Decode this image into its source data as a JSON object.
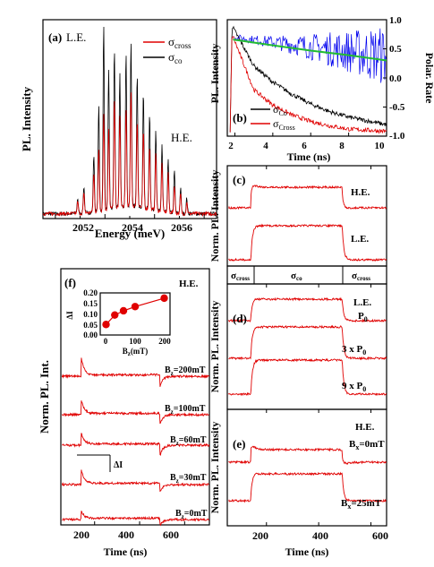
{
  "panels": {
    "a": {
      "label": "(a)",
      "annot_le": "L.E.",
      "annot_he": "H.E.",
      "ylabel": "PL. Intensity",
      "xlabel": "Energy (meV)",
      "xticks": [
        "2052",
        "2054",
        "2056"
      ],
      "legend": [
        {
          "sym": "σ",
          "sub": "cross",
          "color": "#e00000"
        },
        {
          "sym": "σ",
          "sub": "co",
          "color": "#000000"
        }
      ]
    },
    "b": {
      "label": "(b)",
      "ylabel_left": "PL. Intensity",
      "ylabel_right": "Polar. Rate",
      "xlabel": "Time (ns)",
      "xticks": [
        "2",
        "4",
        "6",
        "8",
        "10"
      ],
      "yticks_right": [
        "1.0",
        "0.5",
        "0.0",
        "-0.5",
        "-1.0"
      ],
      "legend": [
        {
          "sym": "σ",
          "sub": "Co",
          "color": "#000000"
        },
        {
          "sym": "σ",
          "sub": "Cross",
          "color": "#e00000"
        }
      ]
    },
    "c": {
      "label": "(c)",
      "ylabel": "Norm. PL. Intensity",
      "trace_labels": [
        "H.E.",
        "L.E."
      ],
      "pol_bar": {
        "left": {
          "sym": "σ",
          "sub": "cross"
        },
        "mid": {
          "sym": "σ",
          "sub": "co"
        },
        "right": {
          "sym": "σ",
          "sub": "cross"
        }
      }
    },
    "d": {
      "label": "(d)",
      "ylabel": "Norm. PL. Intensity",
      "annot": "L.E.",
      "trace_labels": [
        {
          "text": "P",
          "sub": "0"
        },
        {
          "text": "3 x P",
          "sub": "0"
        },
        {
          "text": "9 x P",
          "sub": "0"
        }
      ]
    },
    "e": {
      "label": "(e)",
      "ylabel": "Norm. PL. Intensity",
      "annot": "H.E.",
      "xlabel": "Time (ns)",
      "xticks": [
        "200",
        "400",
        "600"
      ],
      "trace_labels": [
        {
          "pre": "B",
          "sub": "x",
          "post": "=0mT"
        },
        {
          "pre": "B",
          "sub": "x",
          "post": "=25mT"
        }
      ]
    },
    "f": {
      "label": "(f)",
      "ylabel": "Norm. PL. Int.",
      "annot": "H.E.",
      "xlabel": "Time (ns)",
      "xticks": [
        "200",
        "400",
        "600"
      ],
      "delta_label": "ΔI",
      "trace_labels": [
        {
          "pre": "B",
          "sub": "z",
          "post": "=200mT"
        },
        {
          "pre": "B",
          "sub": "z",
          "post": "=100mT"
        },
        {
          "pre": "B",
          "sub": "z",
          "post": "=60mT"
        },
        {
          "pre": "B",
          "sub": "z",
          "post": "=30mT"
        },
        {
          "pre": "B",
          "sub": "z",
          "post": "=0mT"
        }
      ],
      "inset": {
        "ylabel": "ΔI",
        "xlabel_pre": "B",
        "xlabel_sub": "z",
        "xlabel_post": "(mT)",
        "xticks": [
          "0",
          "100",
          "200"
        ],
        "yticks": [
          "0.20",
          "0.15",
          "0.10",
          "0.05",
          "0.00"
        ]
      }
    }
  },
  "chart_data": [
    {
      "panel": "a",
      "type": "line",
      "xlabel": "Energy (meV)",
      "ylabel": "PL. Intensity",
      "xlim": [
        2050.5,
        2057.5
      ],
      "series": [
        {
          "name": "σcross",
          "color": "#e00000",
          "peaks": [
            [
              2051.9,
              0.06
            ],
            [
              2052.15,
              0.1
            ],
            [
              2052.55,
              0.2
            ],
            [
              2052.75,
              0.33
            ],
            [
              2052.95,
              0.5
            ],
            [
              2053.15,
              0.42
            ],
            [
              2053.38,
              0.58
            ],
            [
              2053.6,
              0.47
            ],
            [
              2053.85,
              0.52
            ],
            [
              2054.05,
              0.6
            ],
            [
              2054.3,
              0.45
            ],
            [
              2054.55,
              0.4
            ],
            [
              2054.8,
              0.33
            ],
            [
              2055.05,
              0.3
            ],
            [
              2055.3,
              0.25
            ],
            [
              2055.55,
              0.2
            ],
            [
              2055.8,
              0.15
            ],
            [
              2056.05,
              0.1
            ],
            [
              2056.3,
              0.06
            ]
          ]
        },
        {
          "name": "σco",
          "color": "#000000",
          "peaks": [
            [
              2051.9,
              0.08
            ],
            [
              2052.15,
              0.14
            ],
            [
              2052.55,
              0.3
            ],
            [
              2052.75,
              0.55
            ],
            [
              2052.95,
              0.98
            ],
            [
              2053.15,
              0.72
            ],
            [
              2053.38,
              0.83
            ],
            [
              2053.6,
              0.7
            ],
            [
              2053.85,
              0.8
            ],
            [
              2054.05,
              0.86
            ],
            [
              2054.3,
              0.7
            ],
            [
              2054.55,
              0.6
            ],
            [
              2054.8,
              0.5
            ],
            [
              2055.05,
              0.42
            ],
            [
              2055.3,
              0.35
            ],
            [
              2055.55,
              0.28
            ],
            [
              2055.8,
              0.22
            ],
            [
              2056.05,
              0.13
            ],
            [
              2056.3,
              0.08
            ]
          ]
        }
      ]
    },
    {
      "panel": "b",
      "type": "line",
      "xlabel": "Time (ns)",
      "xlim": [
        1.6,
        10
      ],
      "ylim_right": [
        -1,
        1
      ],
      "series": [
        {
          "name": "σCo",
          "color": "#000000",
          "decay_points": [
            [
              1.8,
              1.0
            ],
            [
              3,
              0.62
            ],
            [
              4,
              0.47
            ],
            [
              5,
              0.36
            ],
            [
              6,
              0.27
            ],
            [
              7,
              0.2
            ],
            [
              8,
              0.15
            ],
            [
              10,
              0.08
            ]
          ]
        },
        {
          "name": "σCross",
          "color": "#e00000",
          "decay_points": [
            [
              1.8,
              0.93
            ],
            [
              3,
              0.4
            ],
            [
              4,
              0.26
            ],
            [
              5,
              0.17
            ],
            [
              6,
              0.11
            ],
            [
              7,
              0.07
            ],
            [
              8,
              0.04
            ],
            [
              10,
              0.02
            ]
          ]
        },
        {
          "axis": "right",
          "color": "#0000ee",
          "description_points": [
            [
              2,
              0.68
            ],
            [
              4,
              0.55
            ],
            [
              6,
              0.45
            ],
            [
              8,
              0.38
            ],
            [
              10,
              0.3
            ]
          ]
        },
        {
          "axis": "right",
          "color": "#22bb33",
          "fit_points": [
            [
              1.9,
              0.66
            ],
            [
              4,
              0.56
            ],
            [
              6,
              0.47
            ],
            [
              8,
              0.39
            ],
            [
              10,
              0.3
            ]
          ]
        }
      ]
    },
    {
      "panel": "c",
      "type": "line",
      "xlim": [
        50,
        660
      ],
      "switch_times": [
        140,
        490
      ],
      "series": [
        {
          "name": "H.E.",
          "low": 0.1,
          "high": 0.7,
          "spike": 0.95
        },
        {
          "name": "L.E.",
          "low": 0.1,
          "high": 0.75,
          "spike": 0
        }
      ]
    },
    {
      "panel": "d",
      "type": "line",
      "xlim": [
        50,
        660
      ],
      "switch_times": [
        140,
        490
      ],
      "series": [
        {
          "name": "P0"
        },
        {
          "name": "3 x P0"
        },
        {
          "name": "9 x P0"
        }
      ]
    },
    {
      "panel": "e",
      "type": "line",
      "xlabel": "Time (ns)",
      "xlim": [
        50,
        660
      ],
      "switch_times": [
        140,
        490
      ],
      "series": [
        {
          "name": "Bx=0mT"
        },
        {
          "name": "Bx=25mT"
        }
      ]
    },
    {
      "panel": "f",
      "type": "line",
      "xlabel": "Time (ns)",
      "xlim": [
        50,
        710
      ],
      "switch_times": [
        140,
        490
      ],
      "series": [
        {
          "name": "Bz=200mT",
          "spike": 0.55
        },
        {
          "name": "Bz=100mT",
          "spike": 0.5
        },
        {
          "name": "Bz=60mT",
          "spike": 0.45
        },
        {
          "name": "Bz=30mT",
          "spike": 0.5
        },
        {
          "name": "Bz=0mT",
          "spike": 0.25
        }
      ]
    },
    {
      "panel": "f-inset",
      "type": "scatter",
      "xlabel": "Bz(mT)",
      "ylabel": "ΔI",
      "xlim": [
        -20,
        220
      ],
      "ylim": [
        0,
        0.2
      ],
      "x": [
        0,
        30,
        60,
        100,
        200
      ],
      "y": [
        0.05,
        0.095,
        0.115,
        0.135,
        0.175
      ]
    }
  ]
}
